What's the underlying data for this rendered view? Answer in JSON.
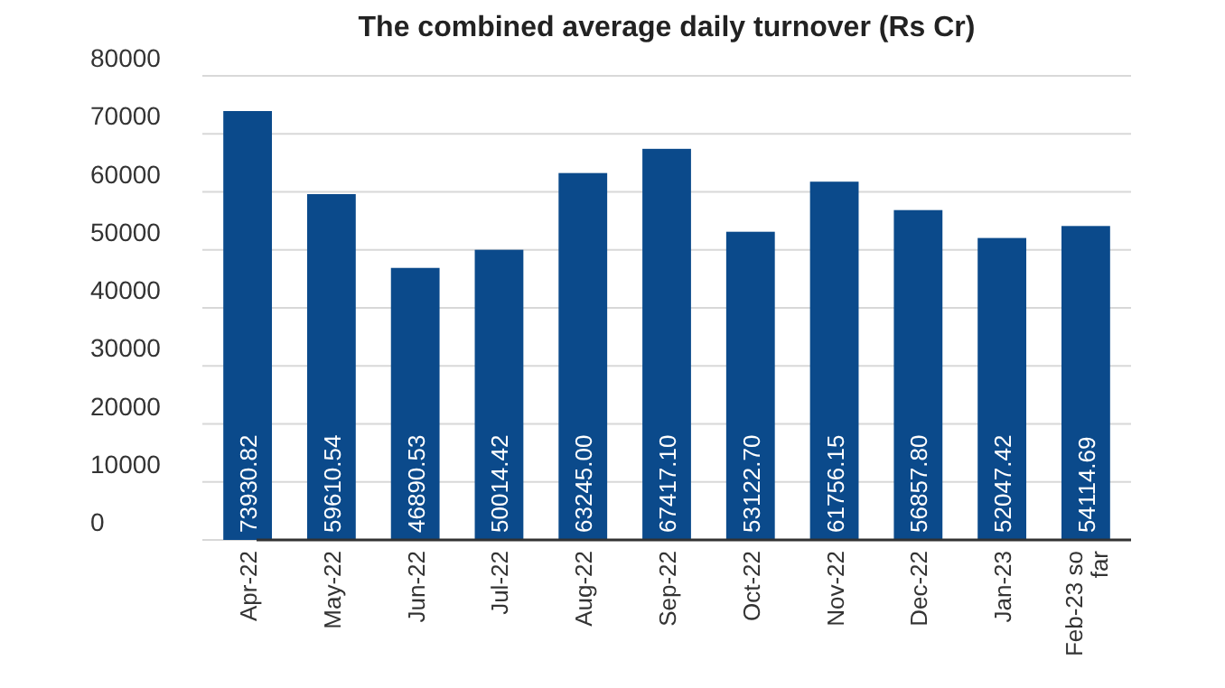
{
  "chart_data": {
    "type": "bar",
    "title": "The combined average daily turnover (Rs Cr)",
    "categories": [
      "Apr-22",
      "May-22",
      "Jun-22",
      "Jul-22",
      "Aug-22",
      "Sep-22",
      "Oct-22",
      "Nov-22",
      "Dec-22",
      "Jan-23",
      "Feb-23 so far"
    ],
    "values": [
      73930.82,
      59610.54,
      46890.53,
      50014.42,
      63245.0,
      67417.1,
      53122.7,
      61756.15,
      56857.8,
      52047.42,
      54114.69
    ],
    "value_labels": [
      "73930.82",
      "59610.54",
      "46890.53",
      "50014.42",
      "63245.00",
      "67417.10",
      "53122.70",
      "61756.15",
      "56857.80",
      "52047.42",
      "54114.69"
    ],
    "color": "#0b4a8b",
    "ylim": [
      0,
      80000
    ],
    "yticks": [
      0,
      10000,
      20000,
      30000,
      40000,
      50000,
      60000,
      70000,
      80000
    ],
    "grid": "y"
  }
}
